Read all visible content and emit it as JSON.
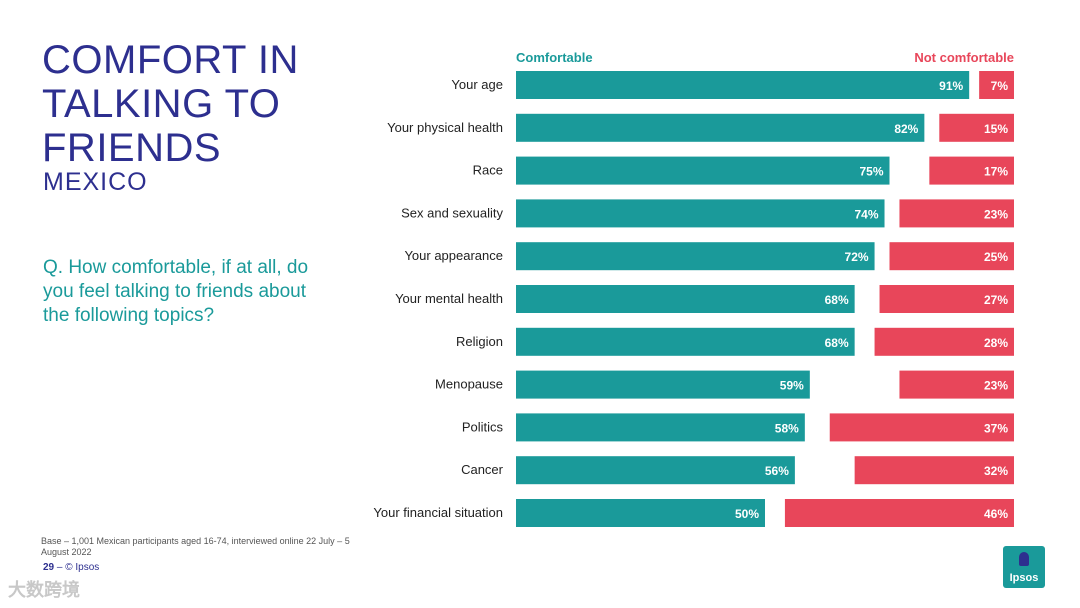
{
  "slide": {
    "title": "COMFORT IN TALKING TO FRIENDS",
    "subtitle": "MEXICO",
    "question": "Q. How comfortable, if at all, do you feel talking to friends about the following topics?",
    "base_note": "Base – 1,001 Mexican participants aged 16-74, interviewed online 22 July – 5 August 2022",
    "page_number": "29",
    "copyright": "–  © Ipsos",
    "logo_text": "Ipsos",
    "watermark": "大数跨境"
  },
  "colors": {
    "comfortable": "#1a9a9a",
    "not_comfortable": "#e8465a",
    "title": "#2d2f8f",
    "question": "#1a9a9a"
  },
  "chart_data": {
    "type": "bar",
    "orientation": "horizontal",
    "legend": [
      "Comfortable",
      "Not comfortable"
    ],
    "categories": [
      "Your age",
      "Your physical health",
      "Race",
      "Sex and sexuality",
      "Your appearance",
      "Your mental health",
      "Religion",
      "Menopause",
      "Politics",
      "Cancer",
      "Your financial situation"
    ],
    "series": [
      {
        "name": "Comfortable",
        "values": [
          91,
          82,
          75,
          74,
          72,
          68,
          68,
          59,
          58,
          56,
          50
        ],
        "align": "left"
      },
      {
        "name": "Not comfortable",
        "values": [
          7,
          15,
          17,
          23,
          25,
          27,
          28,
          23,
          37,
          32,
          46
        ],
        "align": "right"
      }
    ],
    "value_suffix": "%",
    "xlim": [
      0,
      100
    ]
  }
}
